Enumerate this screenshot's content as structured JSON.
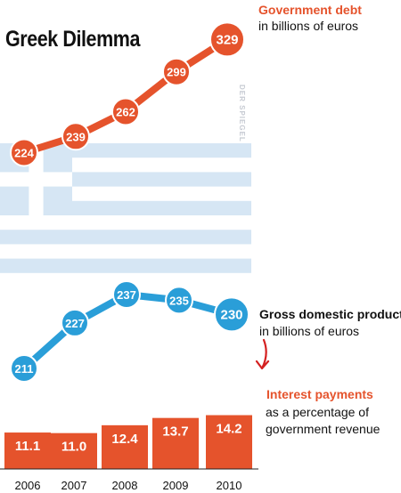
{
  "title": "Greek Dilemma",
  "source": "DER SPIEGEL",
  "colors": {
    "debt": "#e5532c",
    "gdp": "#2a9ed8",
    "flag": "#d6e6f4",
    "interest": "#e5532c",
    "arrow": "#d42020"
  },
  "labels": {
    "debt_title": "Government debt",
    "debt_unit": "in billions of euros",
    "gdp_title": "Gross domestic product",
    "gdp_unit": "in billions of euros",
    "interest_title": "Interest payments",
    "interest_unit_1": "as a percentage of",
    "interest_unit_2": "government revenue"
  },
  "chart_data": [
    {
      "type": "line",
      "title": "Greek Dilemma",
      "x": [
        "2006",
        "2007",
        "2008",
        "2009",
        "2010"
      ],
      "series": [
        {
          "name": "Government debt",
          "unit": "in billions of euros",
          "values": [
            224,
            239,
            262,
            299,
            329
          ]
        },
        {
          "name": "Gross domestic product",
          "unit": "in billions of euros",
          "values": [
            211,
            227,
            237,
            235,
            230
          ]
        }
      ]
    },
    {
      "type": "bar",
      "categories": [
        "2006",
        "2007",
        "2008",
        "2009",
        "2010"
      ],
      "series": [
        {
          "name": "Interest payments",
          "unit": "as a percentage of government revenue",
          "values": [
            11.1,
            11.0,
            12.4,
            13.7,
            14.2
          ]
        }
      ]
    }
  ]
}
